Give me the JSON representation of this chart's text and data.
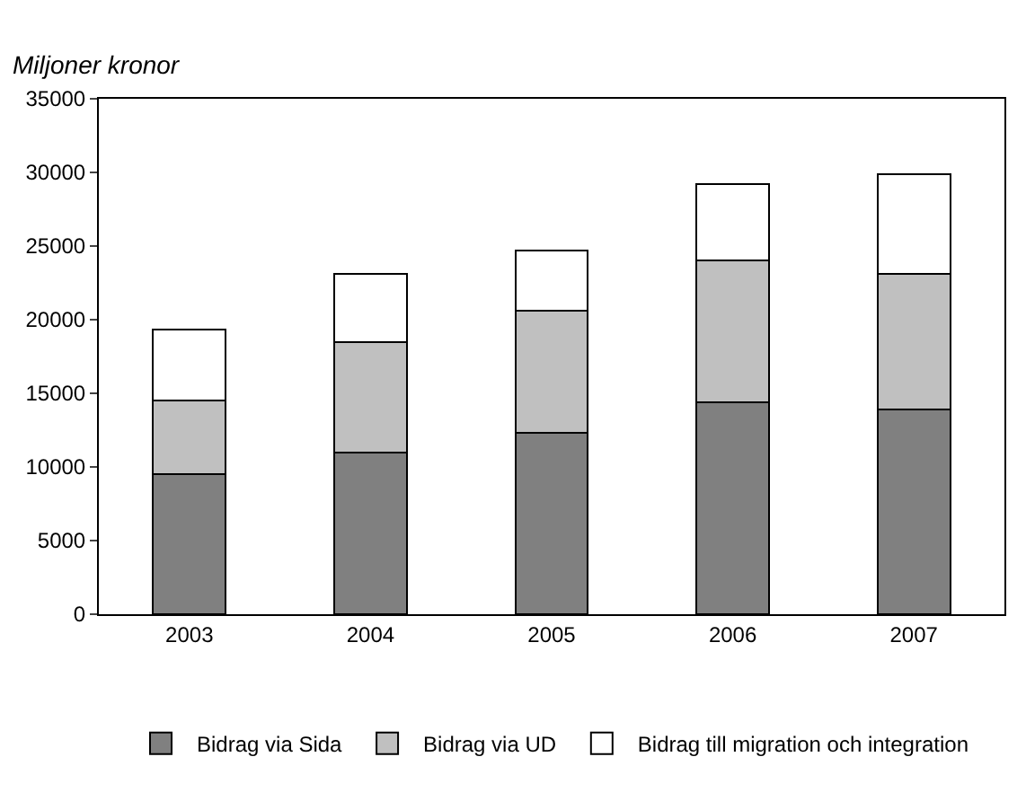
{
  "chart_data": {
    "type": "bar",
    "stacked": true,
    "ylabel": "Miljoner kronor",
    "categories": [
      "2003",
      "2004",
      "2005",
      "2006",
      "2007"
    ],
    "series": [
      {
        "name": "Bidrag via Sida",
        "color": "#808080",
        "values": [
          9500,
          11000,
          12300,
          14400,
          13900
        ]
      },
      {
        "name": "Bidrag via UD",
        "color": "#c0c0c0",
        "values": [
          5000,
          7500,
          8300,
          9600,
          9200
        ]
      },
      {
        "name": "Bidrag till migration och integration",
        "color": "#ffffff",
        "values": [
          4800,
          4600,
          4100,
          5200,
          6800
        ]
      }
    ],
    "ylim": [
      0,
      35000
    ],
    "yticks": [
      0,
      5000,
      10000,
      15000,
      20000,
      25000,
      30000,
      35000
    ],
    "grid": false,
    "legend": "bottom"
  }
}
